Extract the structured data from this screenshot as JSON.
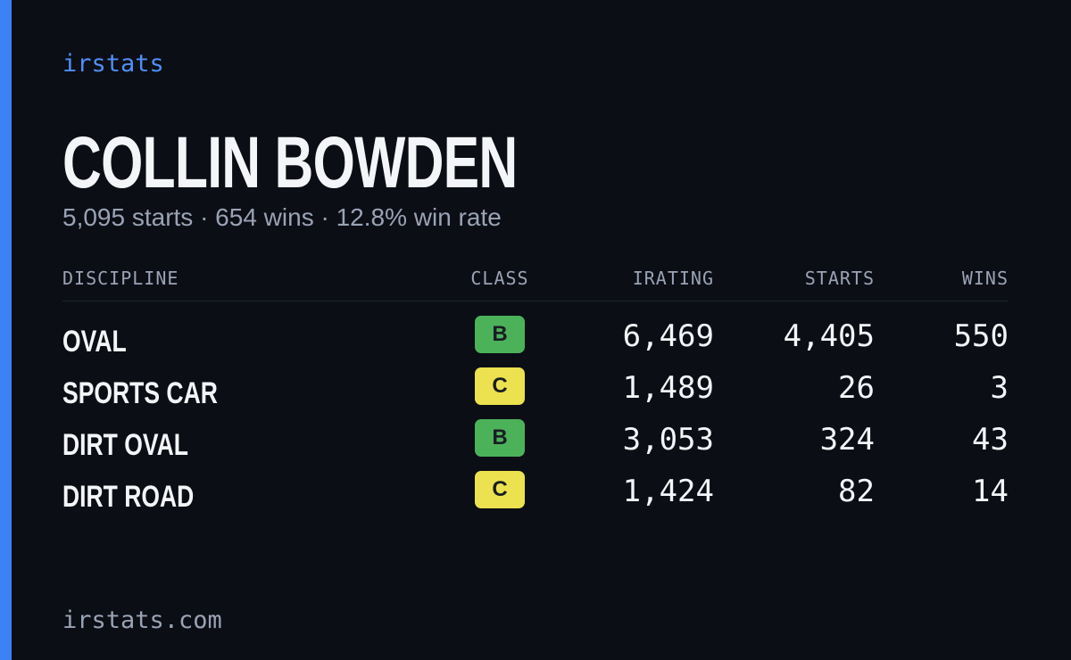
{
  "brand": "irstats",
  "name": "COLLIN BOWDEN",
  "summary": "5,095 starts · 654 wins · 12.8% win rate",
  "table": {
    "headers": [
      "DISCIPLINE",
      "CLASS",
      "IRATING",
      "STARTS",
      "WINS"
    ],
    "rows": [
      {
        "discipline": "OVAL",
        "class": "B",
        "class_color": "#4cb25a",
        "irating": "6,469",
        "starts": "4,405",
        "wins": "550"
      },
      {
        "discipline": "SPORTS CAR",
        "class": "C",
        "class_color": "#ece14f",
        "irating": "1,489",
        "starts": "26",
        "wins": "3"
      },
      {
        "discipline": "DIRT OVAL",
        "class": "B",
        "class_color": "#4cb25a",
        "irating": "3,053",
        "starts": "324",
        "wins": "43"
      },
      {
        "discipline": "DIRT ROAD",
        "class": "C",
        "class_color": "#ece14f",
        "irating": "1,424",
        "starts": "82",
        "wins": "14"
      }
    ]
  },
  "footer": "irstats.com"
}
